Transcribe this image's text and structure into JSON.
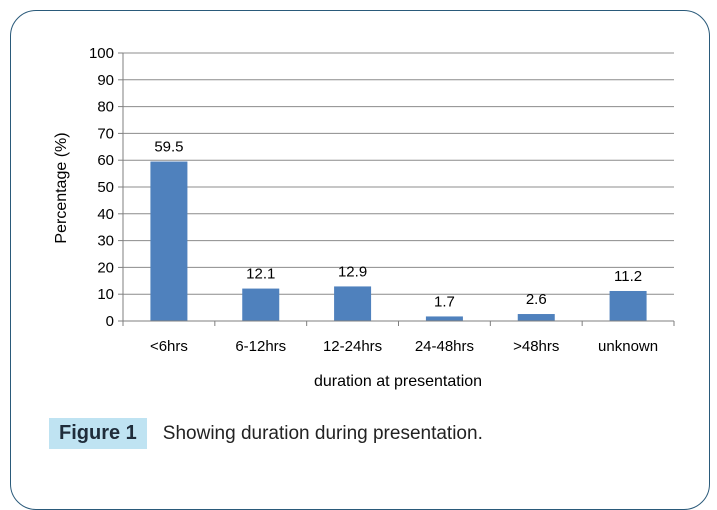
{
  "chart_data": {
    "type": "bar",
    "categories": [
      "<6hrs",
      "6-12hrs",
      "12-24hrs",
      "24-48hrs",
      ">48hrs",
      "unknown"
    ],
    "values": [
      59.5,
      12.1,
      12.9,
      1.7,
      2.6,
      11.2
    ],
    "data_labels": [
      "59.5",
      "12.1",
      "12.9",
      "1.7",
      "2.6",
      "11.2"
    ],
    "xlabel": "duration at presentation",
    "ylabel": "Percentage (%)",
    "ylim": [
      0,
      100
    ],
    "yticks": [
      0,
      10,
      20,
      30,
      40,
      50,
      60,
      70,
      80,
      90,
      100
    ],
    "grid": true,
    "bar_color": "#4f81bd",
    "grid_color": "#8c8c8c"
  },
  "caption": {
    "label": "Figure 1",
    "text": "Showing duration during presentation."
  }
}
